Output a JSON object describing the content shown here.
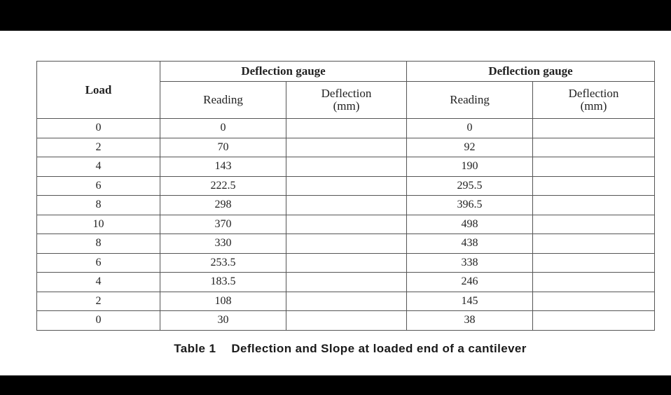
{
  "table": {
    "headers": {
      "load": "Load",
      "group1": "Deflection gauge",
      "group2": "Deflection gauge",
      "reading1": "Reading",
      "deflection1_line1": "Deflection",
      "deflection1_line2": "(mm)",
      "reading2": "Reading",
      "deflection2_line1": "Deflection",
      "deflection2_line2": "(mm)"
    },
    "rows": [
      {
        "load": "0",
        "reading1": "0",
        "deflection1": "",
        "reading2": "0",
        "deflection2": ""
      },
      {
        "load": "2",
        "reading1": "70",
        "deflection1": "",
        "reading2": "92",
        "deflection2": ""
      },
      {
        "load": "4",
        "reading1": "143",
        "deflection1": "",
        "reading2": "190",
        "deflection2": ""
      },
      {
        "load": "6",
        "reading1": "222.5",
        "deflection1": "",
        "reading2": "295.5",
        "deflection2": ""
      },
      {
        "load": "8",
        "reading1": "298",
        "deflection1": "",
        "reading2": "396.5",
        "deflection2": ""
      },
      {
        "load": "10",
        "reading1": "370",
        "deflection1": "",
        "reading2": "498",
        "deflection2": ""
      },
      {
        "load": "8",
        "reading1": "330",
        "deflection1": "",
        "reading2": "438",
        "deflection2": ""
      },
      {
        "load": "6",
        "reading1": "253.5",
        "deflection1": "",
        "reading2": "338",
        "deflection2": ""
      },
      {
        "load": "4",
        "reading1": "183.5",
        "deflection1": "",
        "reading2": "246",
        "deflection2": ""
      },
      {
        "load": "2",
        "reading1": "108",
        "deflection1": "",
        "reading2": "145",
        "deflection2": ""
      },
      {
        "load": "0",
        "reading1": "30",
        "deflection1": "",
        "reading2": "38",
        "deflection2": ""
      }
    ]
  },
  "caption": {
    "label": "Table 1",
    "text": "Deflection and Slope at loaded end of a cantilever"
  }
}
